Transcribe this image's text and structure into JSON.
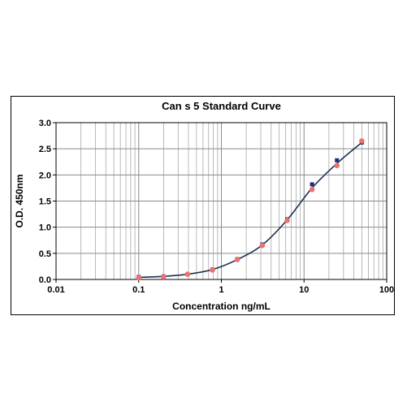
{
  "chart_data": {
    "type": "scatter",
    "title": "Can s 5 Standard Curve",
    "xlabel": "Concentration ng/mL",
    "ylabel": "O.D. 450nm",
    "x_scale": "log",
    "xlim": [
      0.01,
      100
    ],
    "ylim": [
      0,
      3.0
    ],
    "x_ticks": [
      "0.01",
      "0.1",
      "1",
      "10",
      "100"
    ],
    "y_ticks": [
      "0.0",
      "0.5",
      "1.0",
      "1.5",
      "2.0",
      "2.5",
      "3.0"
    ],
    "grid": true,
    "legend": "none",
    "series": [
      {
        "marker": "square",
        "color": "#1a2f7a",
        "points": [
          [
            0.1,
            0.05
          ],
          [
            0.2,
            0.06
          ],
          [
            0.39,
            0.1
          ],
          [
            0.78,
            0.19
          ],
          [
            1.56,
            0.39
          ],
          [
            3.13,
            0.67
          ],
          [
            6.25,
            1.15
          ],
          [
            12.5,
            1.82
          ],
          [
            25,
            2.28
          ],
          [
            50,
            2.62
          ]
        ]
      },
      {
        "marker": "circle",
        "color": "#f07070",
        "points": [
          [
            0.1,
            0.04
          ],
          [
            0.2,
            0.05
          ],
          [
            0.39,
            0.1
          ],
          [
            0.78,
            0.18
          ],
          [
            1.56,
            0.38
          ],
          [
            3.13,
            0.65
          ],
          [
            6.25,
            1.13
          ],
          [
            12.5,
            1.72
          ],
          [
            25,
            2.18
          ],
          [
            50,
            2.65
          ]
        ]
      }
    ],
    "fit_curve": {
      "color": "#1a2f4f",
      "points": [
        [
          0.1,
          0.04
        ],
        [
          0.2,
          0.06
        ],
        [
          0.39,
          0.1
        ],
        [
          0.78,
          0.19
        ],
        [
          1.56,
          0.38
        ],
        [
          3.13,
          0.66
        ],
        [
          6.25,
          1.14
        ],
        [
          12.5,
          1.75
        ],
        [
          25,
          2.22
        ],
        [
          50,
          2.62
        ]
      ]
    }
  }
}
